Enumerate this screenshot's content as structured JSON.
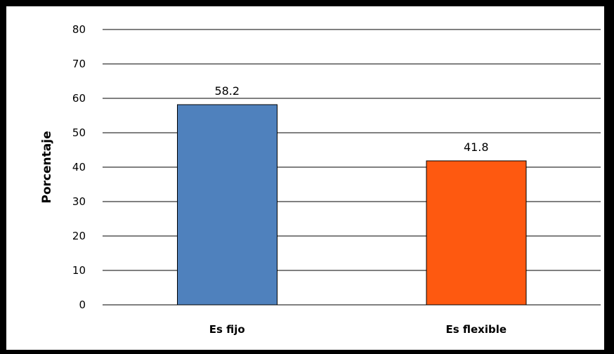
{
  "chart_data": {
    "type": "bar",
    "title": "",
    "xlabel": "",
    "ylabel": "Porcentaje",
    "categories": [
      "Es fijo",
      "Es flexible"
    ],
    "values": [
      58.2,
      41.8
    ],
    "data_labels": [
      "58.2",
      "41.8"
    ],
    "colors": [
      "#4f81bd",
      "#fe5910"
    ],
    "ylim": [
      0,
      80
    ],
    "yticks": [
      0,
      10,
      20,
      30,
      40,
      50,
      60,
      70,
      80
    ],
    "grid": true,
    "legend": "none"
  }
}
